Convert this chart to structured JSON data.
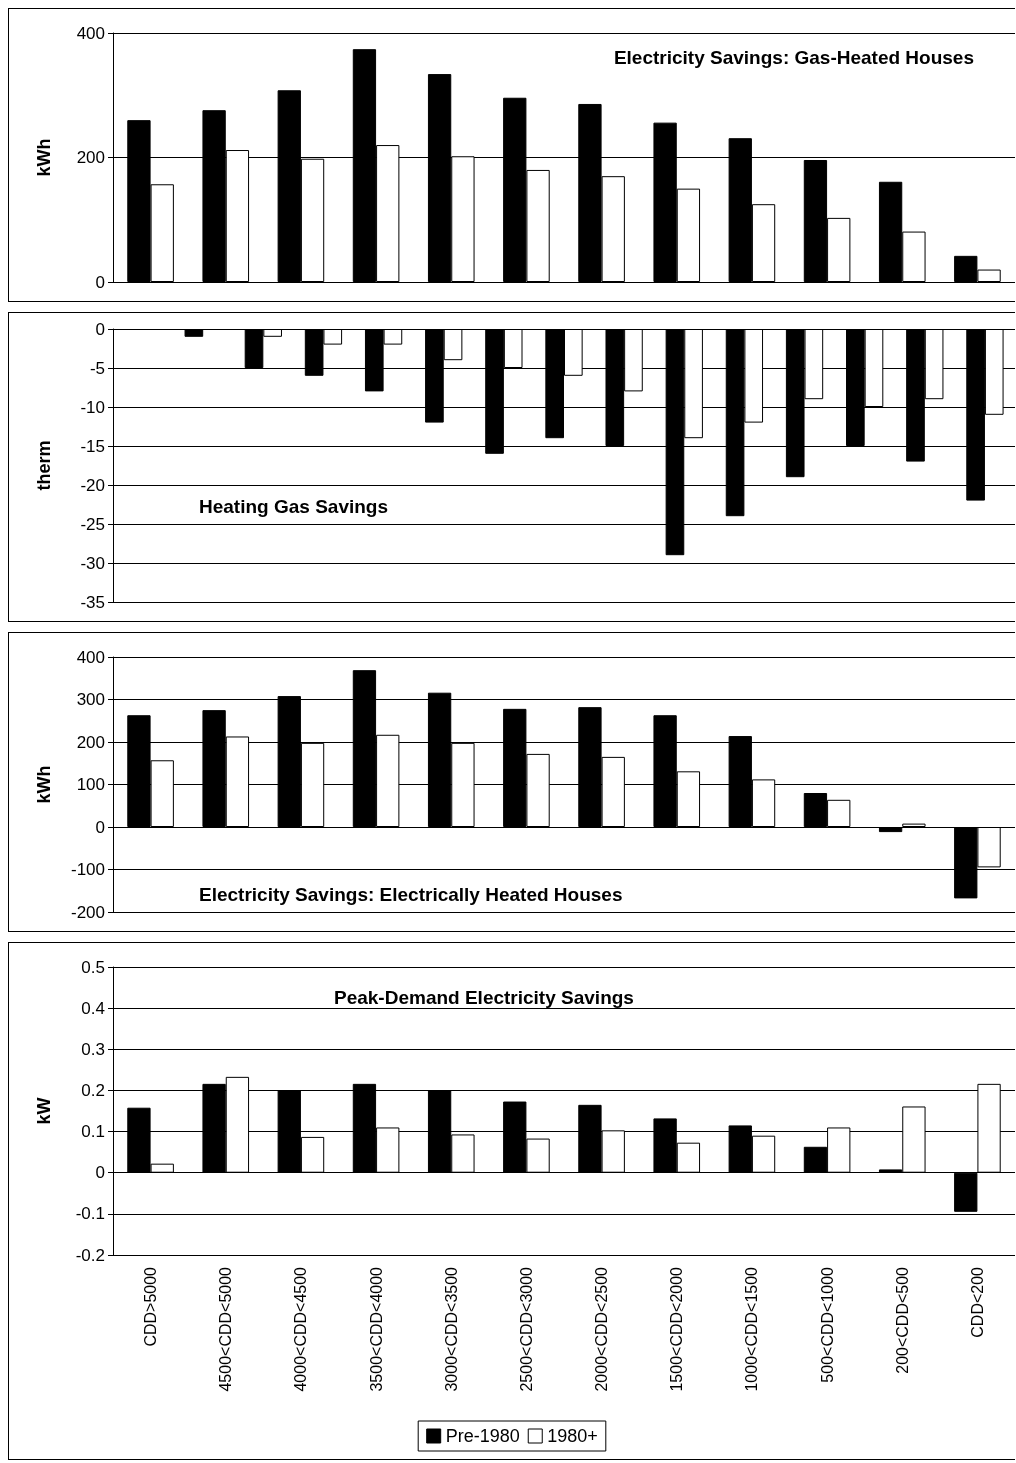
{
  "chart_data": [
    {
      "type": "bar",
      "title": "Electricity Savings: Gas-Heated Houses",
      "ylabel": "kWh",
      "categories": [
        null,
        null,
        null,
        null,
        null,
        null,
        null,
        null,
        null,
        null,
        null,
        null
      ],
      "series": [
        {
          "color": "#000000",
          "values": [
            260,
            276,
            308,
            374,
            334,
            296,
            286,
            256,
            231,
            196,
            161,
            42
          ]
        },
        {
          "color": "#ffffff",
          "values": [
            157,
            212,
            198,
            220,
            202,
            180,
            170,
            150,
            125,
            103,
            81,
            20
          ]
        }
      ],
      "ylim": [
        0,
        400
      ],
      "yticks": [
        0,
        200,
        400
      ],
      "grid": "y",
      "tick_labels": "y"
    },
    {
      "type": "bar",
      "title": "Heating Gas Savings",
      "ylabel": "therm",
      "categories": [
        null,
        null,
        null,
        null,
        null,
        null,
        null,
        null,
        null,
        null,
        null,
        null,
        null,
        null,
        null
      ],
      "series": [
        {
          "color": "#000000",
          "values": [
            null,
            -1,
            -5,
            -6,
            -8,
            -12,
            -16,
            -14,
            -15,
            -29,
            -24,
            -19,
            -15,
            -17,
            -22
          ]
        },
        {
          "color": "#ffffff",
          "values": [
            null,
            null,
            -1,
            -2,
            -2,
            -4,
            -5,
            -6,
            -8,
            -14,
            -12,
            -9,
            -10,
            -9,
            -11
          ]
        }
      ],
      "ylim": [
        -35,
        0
      ],
      "yticks": [
        -35,
        -30,
        -25,
        -20,
        -15,
        -10,
        -5,
        0
      ],
      "grid": "y",
      "tick_labels": "y"
    },
    {
      "type": "bar",
      "title": "Electricity Savings: Electrically Heated Houses",
      "ylabel": "kWh",
      "categories": [
        null,
        null,
        null,
        null,
        null,
        null,
        null,
        null,
        null,
        null,
        null,
        null
      ],
      "series": [
        {
          "color": "#000000",
          "values": [
            263,
            275,
            308,
            369,
            316,
            278,
            282,
            263,
            214,
            80,
            -12,
            -168
          ]
        },
        {
          "color": "#ffffff",
          "values": [
            157,
            213,
            198,
            217,
            198,
            172,
            165,
            131,
            112,
            64,
            8,
            -95
          ]
        }
      ],
      "ylim": [
        -200,
        400
      ],
      "yticks": [
        -200,
        -100,
        0,
        100,
        200,
        300,
        400
      ],
      "grid": "y",
      "tick_labels": "y"
    },
    {
      "type": "bar",
      "title": "Peak-Demand Electricity Savings",
      "ylabel": "kW",
      "categories": [
        "CDD>5000",
        "4500<CDD<5000",
        "4000<CDD<4500",
        "3500<CDD<4000",
        "3000<CDD<3500",
        "2500<CDD<3000",
        "2000<CDD<2500",
        "1500<CDD<2000",
        "1000<CDD<1500",
        "500<CDD<1000",
        "200<CDD<500",
        "CDD<200"
      ],
      "series": [
        {
          "name": "Pre-1980",
          "color": "#000000",
          "values": [
            0.158,
            0.216,
            0.2,
            0.216,
            0.2,
            0.173,
            0.165,
            0.132,
            0.115,
            0.063,
            0.008,
            -0.095
          ]
        },
        {
          "name": "1980+",
          "color": "#ffffff",
          "values": [
            0.022,
            0.233,
            0.087,
            0.11,
            0.093,
            0.083,
            0.103,
            0.073,
            0.09,
            0.11,
            0.161,
            0.216
          ]
        }
      ],
      "ylim": [
        -0.2,
        0.5
      ],
      "yticks": [
        -0.2,
        -0.1,
        0,
        0.1,
        0.2,
        0.3,
        0.4,
        0.5
      ],
      "grid": "y",
      "legend": "bottom"
    }
  ]
}
